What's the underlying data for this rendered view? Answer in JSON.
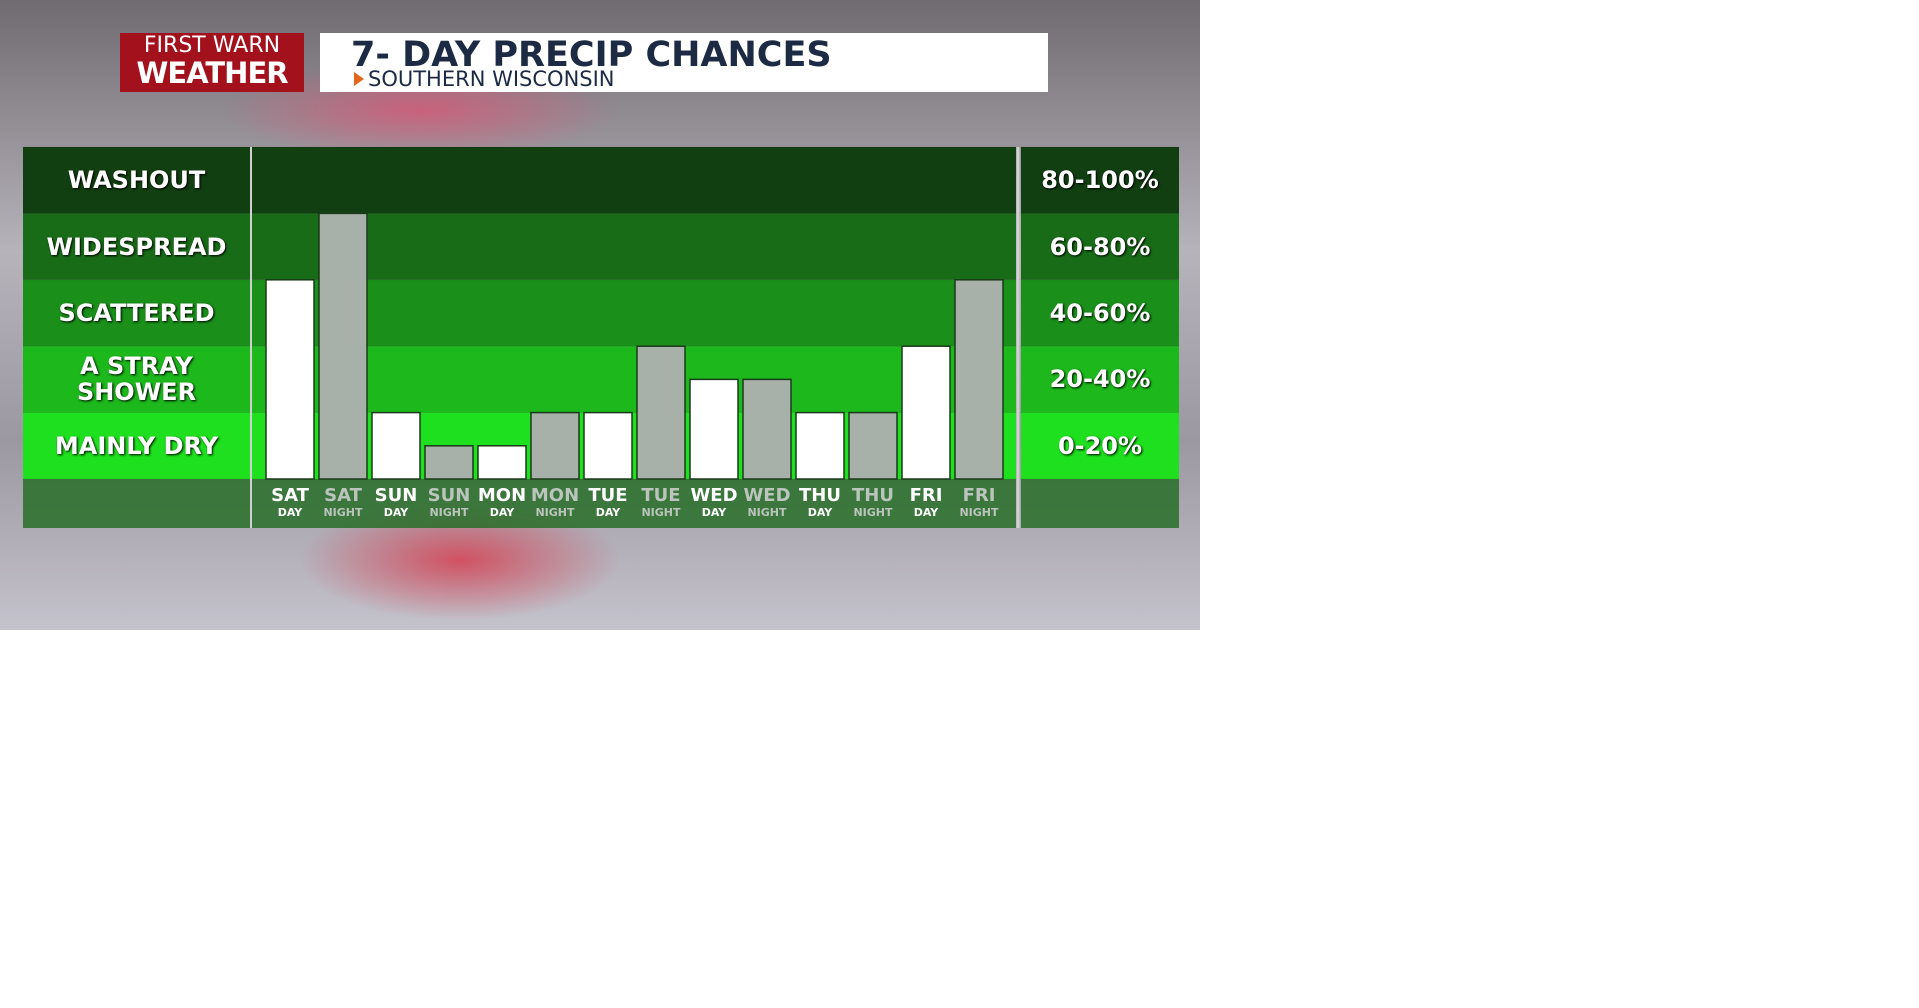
{
  "header": {
    "logo_top": "FIRST WARN",
    "logo_bottom": "WEATHER",
    "title": "7- DAY PRECIP CHANCES",
    "subtitle": "SOUTHERN WISCONSIN"
  },
  "chart_data": {
    "type": "bar",
    "categories": [
      "SAT",
      "SAT",
      "SUN",
      "SUN",
      "MON",
      "MON",
      "TUE",
      "TUE",
      "WED",
      "WED",
      "THU",
      "THU",
      "FRI",
      "FRI"
    ],
    "periods": [
      "DAY",
      "NIGHT",
      "DAY",
      "NIGHT",
      "DAY",
      "NIGHT",
      "DAY",
      "NIGHT",
      "DAY",
      "NIGHT",
      "DAY",
      "NIGHT",
      "DAY",
      "NIGHT"
    ],
    "values": [
      60,
      80,
      20,
      10,
      10,
      20,
      20,
      40,
      30,
      30,
      20,
      20,
      40,
      60
    ],
    "day_color": "#ffffff",
    "night_color": "#a8b0aa",
    "ylim": [
      0,
      100
    ],
    "yticks": [
      0,
      20,
      40,
      60,
      80,
      100
    ],
    "bands": [
      {
        "label": "MAINLY DRY",
        "range": "0-20%",
        "color": "#1ee01e"
      },
      {
        "label": "A STRAY SHOWER",
        "range": "20-40%",
        "color": "#1cb81c"
      },
      {
        "label": "SCATTERED",
        "range": "40-60%",
        "color": "#1a8f1a"
      },
      {
        "label": "WIDESPREAD",
        "range": "60-80%",
        "color": "#186c18"
      },
      {
        "label": "WASHOUT",
        "range": "80-100%",
        "color": "#113f11"
      }
    ]
  }
}
